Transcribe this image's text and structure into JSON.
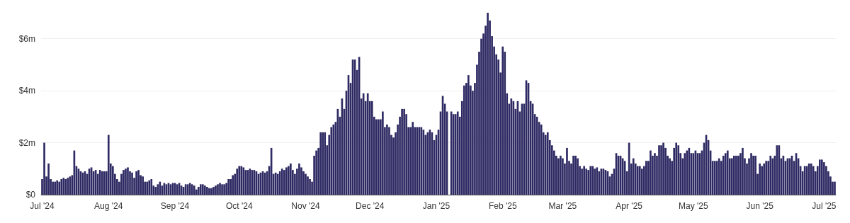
{
  "chart_data": {
    "type": "bar",
    "color": "#2e2a63",
    "grid": "y",
    "ylim": [
      0,
      7.0
    ],
    "yticks": [
      {
        "value": 0,
        "label": "$0"
      },
      {
        "value": 2,
        "label": "$2m"
      },
      {
        "value": 4,
        "label": "$4m"
      },
      {
        "value": 6,
        "label": "$6m"
      }
    ],
    "categories": [
      "Jul '24",
      null,
      null,
      null,
      null,
      null,
      null,
      null,
      null,
      null,
      null,
      null,
      null,
      null,
      null,
      null,
      null,
      null,
      null,
      null,
      null,
      null,
      null,
      null,
      null,
      null,
      null,
      null,
      null,
      null,
      null,
      "Aug '24",
      null,
      null,
      null,
      null,
      null,
      null,
      null,
      null,
      null,
      null,
      null,
      null,
      null,
      null,
      null,
      null,
      null,
      null,
      null,
      null,
      null,
      null,
      null,
      null,
      null,
      null,
      null,
      null,
      null,
      null,
      "Sep '24",
      null,
      null,
      null,
      null,
      null,
      null,
      null,
      null,
      null,
      null,
      null,
      null,
      null,
      null,
      null,
      null,
      null,
      null,
      null,
      null,
      null,
      null,
      null,
      null,
      null,
      null,
      null,
      null,
      null,
      "Oct '24",
      null,
      null,
      null,
      null,
      null,
      null,
      null,
      null,
      null,
      null,
      null,
      null,
      null,
      null,
      null,
      null,
      null,
      null,
      null,
      null,
      null,
      null,
      null,
      null,
      null,
      null,
      null,
      null,
      null,
      null,
      "Nov '24",
      null,
      null,
      null,
      null,
      null,
      null,
      null,
      null,
      null,
      null,
      null,
      null,
      null,
      null,
      null,
      null,
      null,
      null,
      null,
      null,
      null,
      null,
      null,
      null,
      null,
      null,
      null,
      null,
      null,
      "Dec '24",
      null,
      null,
      null,
      null,
      null,
      null,
      null,
      null,
      null,
      null,
      null,
      null,
      null,
      null,
      null,
      null,
      null,
      null,
      null,
      null,
      null,
      null,
      null,
      null,
      null,
      null,
      null,
      null,
      null,
      null,
      "Jan '25",
      null,
      null,
      null,
      null,
      null,
      null,
      null,
      null,
      null,
      null,
      null,
      null,
      null,
      null,
      null,
      null,
      null,
      null,
      null,
      null,
      null,
      null,
      null,
      null,
      null,
      null,
      null,
      null,
      null,
      null,
      "Feb '25",
      null,
      null,
      null,
      null,
      null,
      null,
      null,
      null,
      null,
      null,
      null,
      null,
      null,
      null,
      null,
      null,
      null,
      null,
      null,
      null,
      null,
      null,
      null,
      null,
      null,
      null,
      null,
      "Mar '25",
      null,
      null,
      null,
      null,
      null,
      null,
      null,
      null,
      null,
      null,
      null,
      null,
      null,
      null,
      null,
      null,
      null,
      null,
      null,
      null,
      null,
      null,
      null,
      null,
      null,
      null,
      null,
      null,
      null,
      null,
      "Apr '25",
      null,
      null,
      null,
      null,
      null,
      null,
      null,
      null,
      null,
      null,
      null,
      null,
      null,
      null,
      null,
      null,
      null,
      null,
      null,
      null,
      null,
      null,
      null,
      null,
      null,
      null,
      null,
      null,
      null,
      "May '25",
      null,
      null,
      null,
      null,
      null,
      null,
      null,
      null,
      null,
      null,
      null,
      null,
      null,
      null,
      null,
      null,
      null,
      null,
      null,
      null,
      null,
      null,
      null,
      null,
      null,
      null,
      null,
      null,
      null,
      null,
      "Jun '25",
      null,
      null,
      null,
      null,
      null,
      null,
      null,
      null,
      null,
      null,
      null,
      null,
      null,
      null,
      null,
      null,
      null,
      null,
      null,
      null,
      null,
      null,
      null,
      null,
      null,
      null,
      null,
      null,
      null,
      "Jul '25",
      null,
      null,
      null,
      null,
      null
    ],
    "values": [
      0.6,
      2.0,
      0.7,
      1.2,
      0.6,
      0.5,
      0.5,
      0.55,
      0.5,
      0.6,
      0.65,
      0.6,
      0.65,
      0.7,
      0.75,
      1.7,
      1.1,
      1.0,
      0.9,
      0.85,
      0.9,
      0.8,
      1.0,
      1.05,
      0.9,
      0.95,
      0.8,
      0.95,
      0.9,
      0.9,
      0.9,
      2.3,
      1.2,
      1.1,
      0.8,
      0.6,
      0.5,
      0.8,
      0.95,
      1.0,
      1.05,
      0.9,
      0.85,
      0.65,
      0.9,
      0.95,
      0.75,
      0.7,
      0.5,
      0.5,
      0.55,
      0.6,
      0.35,
      0.3,
      0.4,
      0.5,
      0.35,
      0.45,
      0.4,
      0.45,
      0.4,
      0.45,
      0.45,
      0.4,
      0.45,
      0.35,
      0.3,
      0.4,
      0.4,
      0.45,
      0.4,
      0.35,
      0.2,
      0.3,
      0.4,
      0.4,
      0.35,
      0.3,
      0.25,
      0.25,
      0.3,
      0.35,
      0.4,
      0.45,
      0.4,
      0.4,
      0.45,
      0.6,
      0.6,
      0.75,
      0.8,
      1.0,
      1.1,
      1.1,
      1.05,
      0.95,
      0.95,
      1.0,
      0.95,
      0.95,
      0.9,
      0.8,
      0.85,
      0.9,
      0.85,
      0.9,
      1.1,
      1.8,
      0.8,
      0.85,
      0.8,
      0.9,
      1.0,
      0.95,
      1.05,
      1.1,
      1.2,
      0.95,
      0.8,
      1.0,
      1.2,
      1.05,
      0.9,
      0.8,
      0.7,
      0.6,
      0.5,
      1.5,
      1.7,
      1.8,
      2.4,
      2.4,
      2.4,
      1.9,
      2.3,
      2.6,
      2.7,
      2.8,
      3.3,
      3.0,
      3.7,
      3.3,
      4.0,
      4.6,
      4.3,
      5.2,
      5.2,
      4.8,
      5.3,
      3.7,
      3.9,
      3.6,
      3.9,
      3.6,
      3.6,
      3.0,
      2.9,
      2.9,
      2.9,
      3.2,
      2.6,
      2.7,
      2.6,
      2.3,
      2.2,
      2.4,
      2.7,
      3.0,
      3.3,
      3.3,
      3.1,
      2.6,
      2.6,
      2.8,
      2.6,
      2.6,
      2.6,
      2.6,
      2.5,
      2.3,
      2.4,
      2.5,
      2.4,
      2.1,
      2.3,
      2.5,
      3.2,
      3.8,
      3.5,
      3.2,
      null,
      3.2,
      3.1,
      3.1,
      3.2,
      3.0,
      3.6,
      4.2,
      4.3,
      4.6,
      4.2,
      4.0,
      4.3,
      5.0,
      5.5,
      6.0,
      6.2,
      6.5,
      7.0,
      6.7,
      6.1,
      5.7,
      5.4,
      5.2,
      4.7,
      5.7,
      5.5,
      3.9,
      3.5,
      3.7,
      3.6,
      3.3,
      3.6,
      3.2,
      3.5,
      3.5,
      4.4,
      4.3,
      3.6,
      3.5,
      3.1,
      3.0,
      2.8,
      2.7,
      2.4,
      2.3,
      2.4,
      2.1,
      1.9,
      1.7,
      1.5,
      1.4,
      1.5,
      1.4,
      1.2,
      1.8,
      1.3,
      1.2,
      1.5,
      1.5,
      1.4,
      1.1,
      1.0,
      1.1,
      1.0,
      0.95,
      1.1,
      1.1,
      1.0,
      1.05,
      0.9,
      1.0,
      1.0,
      0.95,
      0.9,
      0.7,
      0.8,
      1.0,
      1.6,
      1.5,
      1.5,
      1.4,
      1.3,
      0.9,
      2.0,
      1.2,
      1.4,
      1.2,
      1.1,
      1.1,
      1.0,
      1.1,
      1.3,
      1.3,
      1.7,
      1.5,
      1.6,
      1.5,
      1.9,
      1.9,
      2.0,
      1.8,
      1.5,
      1.4,
      1.3,
      1.8,
      2.0,
      1.9,
      1.6,
      1.4,
      1.6,
      1.7,
      1.8,
      1.6,
      1.6,
      1.7,
      1.6,
      1.6,
      1.7,
      2.0,
      2.3,
      2.1,
      1.7,
      1.3,
      1.3,
      1.3,
      1.4,
      1.3,
      1.5,
      1.6,
      1.7,
      1.4,
      1.4,
      1.5,
      1.5,
      1.5,
      1.6,
      1.8,
      1.4,
      1.2,
      1.4,
      1.6,
      1.5,
      1.5,
      0.8,
      1.2,
      1.1,
      1.2,
      1.3,
      1.3,
      1.5,
      1.4,
      1.5,
      1.9,
      1.9,
      1.4,
      1.5,
      1.3,
      1.4,
      1.4,
      1.5,
      1.3,
      1.6,
      1.4,
      1.1,
      0.9,
      1.1,
      1.1,
      1.2,
      1.2,
      1.1,
      0.9,
      1.1,
      1.35,
      1.35,
      1.25,
      1.1,
      0.9,
      0.7,
      0.5,
      0.5
    ]
  }
}
